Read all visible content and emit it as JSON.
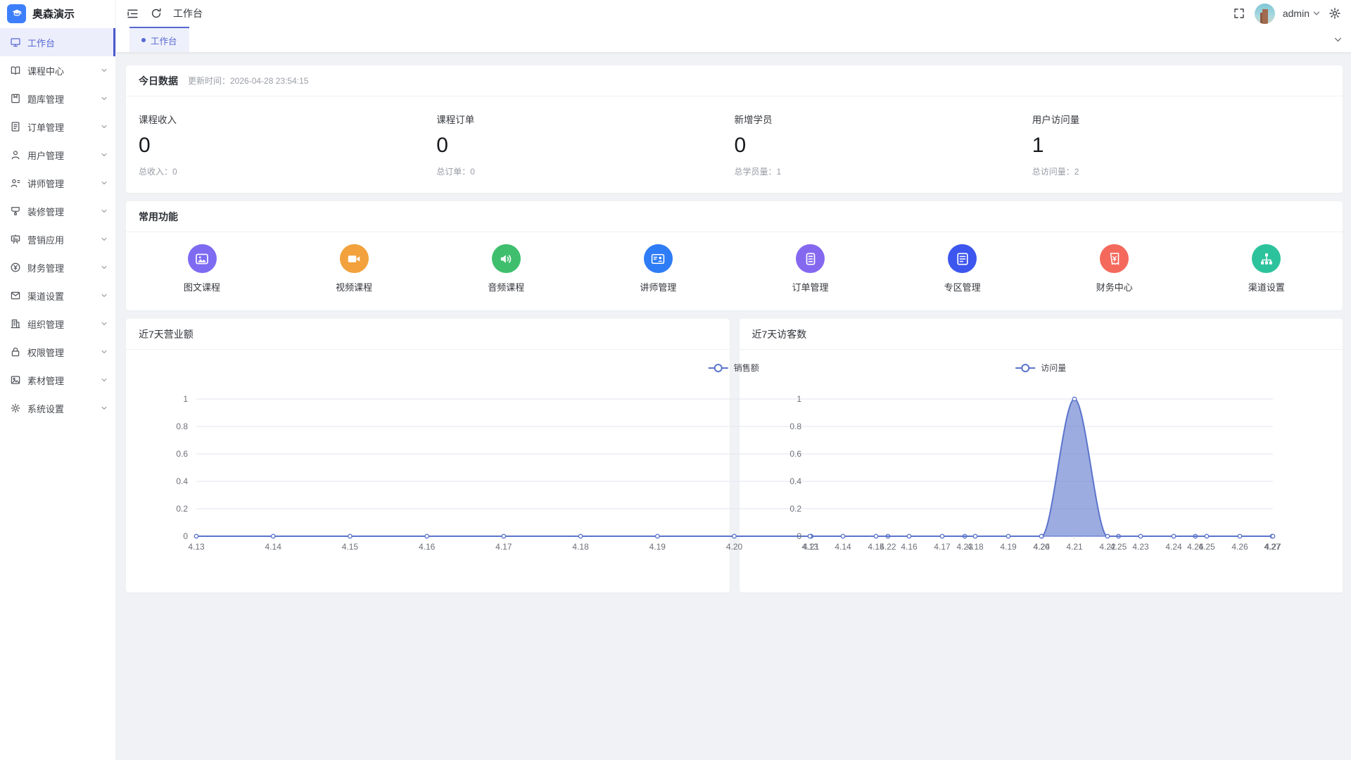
{
  "colors": {
    "accent": "#5767d2",
    "accent_light_bg": "#eceefb",
    "accent_bar": "#4d5ace",
    "logo_blue": "#3d7ffb",
    "content_bg": "#f0f2f5",
    "chart_line": "#5b74cc",
    "chart_area": "rgba(91,116,204,0.6)"
  },
  "sidebar": {
    "logo_text": "奥森演示",
    "logo_icon": "graduation-cap-icon",
    "items": [
      {
        "key": "workbench",
        "label": "工作台",
        "icon": "monitor-icon",
        "active": true,
        "expandable": false
      },
      {
        "key": "course-center",
        "label": "课程中心",
        "icon": "course-book-icon",
        "active": false,
        "expandable": true
      },
      {
        "key": "question-bank",
        "label": "题库管理",
        "icon": "question-bank-icon",
        "active": false,
        "expandable": true
      },
      {
        "key": "order-management",
        "label": "订单管理",
        "icon": "order-file-icon",
        "active": false,
        "expandable": true
      },
      {
        "key": "user-management",
        "label": "用户管理",
        "icon": "user-icon",
        "active": false,
        "expandable": true
      },
      {
        "key": "instructor-management",
        "label": "讲师管理",
        "icon": "instructor-icon",
        "active": false,
        "expandable": true
      },
      {
        "key": "decoration-management",
        "label": "装修管理",
        "icon": "decorate-icon",
        "active": false,
        "expandable": true
      },
      {
        "key": "marketing-apps",
        "label": "营销应用",
        "icon": "marketing-icon",
        "active": false,
        "expandable": true
      },
      {
        "key": "finance-management",
        "label": "财务管理",
        "icon": "finance-yen-icon",
        "active": false,
        "expandable": true
      },
      {
        "key": "channel-settings",
        "label": "渠道设置",
        "icon": "channel-mail-icon",
        "active": false,
        "expandable": true
      },
      {
        "key": "organization-management",
        "label": "组织管理",
        "icon": "organization-icon",
        "active": false,
        "expandable": true
      },
      {
        "key": "permission-management",
        "label": "权限管理",
        "icon": "permission-lock-icon",
        "active": false,
        "expandable": true
      },
      {
        "key": "material-management",
        "label": "素材管理",
        "icon": "material-image-icon",
        "active": false,
        "expandable": true
      },
      {
        "key": "system-settings",
        "label": "系统设置",
        "icon": "system-settings-icon",
        "active": false,
        "expandable": true
      }
    ]
  },
  "topbar": {
    "breadcrumb": "工作台",
    "username": "admin",
    "left_icons": [
      "fold-icon",
      "refresh-icon"
    ],
    "right_icons": [
      "fullscreen-icon",
      "avatar",
      "chevron-down-icon",
      "gear-icon"
    ]
  },
  "tabs": {
    "items": [
      {
        "label": "工作台",
        "active": true
      }
    ]
  },
  "today": {
    "title": "今日数据",
    "updated": "更新时间：2026-04-28 23:54:15",
    "stats": [
      {
        "label": "课程收入",
        "value": "0",
        "sub": "总收入：0"
      },
      {
        "label": "课程订单",
        "value": "0",
        "sub": "总订单：0"
      },
      {
        "label": "新增学员",
        "value": "0",
        "sub": "总学员量：1"
      },
      {
        "label": "用户访问量",
        "value": "1",
        "sub": "总访问量：2"
      }
    ]
  },
  "quick": {
    "title": "常用功能",
    "items": [
      {
        "key": "image-course",
        "label": "图文课程",
        "icon": "image-course-icon",
        "color": "#7d6bf2"
      },
      {
        "key": "video-course",
        "label": "视频课程",
        "icon": "video-course-icon",
        "color": "#f2a13c"
      },
      {
        "key": "audio-course",
        "label": "音频课程",
        "icon": "audio-course-icon",
        "color": "#3fbf6e"
      },
      {
        "key": "instructor-management",
        "label": "讲师管理",
        "icon": "instructor-card-icon",
        "color": "#2e7cf6"
      },
      {
        "key": "order-management",
        "label": "订单管理",
        "icon": "order-list-icon",
        "color": "#8568f0"
      },
      {
        "key": "zone-management",
        "label": "专区管理",
        "icon": "zone-doc-icon",
        "color": "#3d56ee"
      },
      {
        "key": "finance-center",
        "label": "财务中心",
        "icon": "finance-receipt-icon",
        "color": "#f4695c"
      },
      {
        "key": "channel-settings",
        "label": "渠道设置",
        "icon": "channel-network-icon",
        "color": "#2cc39c"
      }
    ]
  },
  "chart_data": [
    {
      "type": "line",
      "title": "近7天营业额",
      "categories": [
        "4.13",
        "4.14",
        "4.15",
        "4.16",
        "4.17",
        "4.18",
        "4.19",
        "4.20",
        "4.21",
        "4.22",
        "4.23",
        "4.24",
        "4.25",
        "4.26",
        "4.27"
      ],
      "series": [
        {
          "name": "销售额",
          "values": [
            0,
            0,
            0,
            0,
            0,
            0,
            0,
            0,
            0,
            0,
            0,
            0,
            0,
            0,
            0
          ]
        }
      ],
      "xlabel": "",
      "ylabel": "",
      "ylim": [
        0,
        1
      ],
      "yticks": [
        0,
        0.2,
        0.4,
        0.6,
        0.8,
        1
      ],
      "legend_position": "top-center",
      "grid": true,
      "smooth": true,
      "line_color": "#5b74cc",
      "area_color": "rgba(91,116,204,0.6)"
    },
    {
      "type": "line",
      "title": "近7天访客数",
      "categories": [
        "4.13",
        "4.14",
        "4.15",
        "4.16",
        "4.17",
        "4.18",
        "4.19",
        "4.20",
        "4.21",
        "4.22",
        "4.23",
        "4.24",
        "4.25",
        "4.26",
        "4.27"
      ],
      "series": [
        {
          "name": "访问量",
          "values": [
            0,
            0,
            0,
            0,
            0,
            0,
            0,
            0,
            1,
            0,
            0,
            0,
            0,
            0,
            0
          ]
        }
      ],
      "xlabel": "",
      "ylabel": "",
      "ylim": [
        0,
        1
      ],
      "yticks": [
        0,
        0.2,
        0.4,
        0.6,
        0.8,
        1
      ],
      "legend_position": "top-center",
      "grid": true,
      "smooth": true,
      "line_color": "#5b74cc",
      "area_color": "rgba(91,116,204,0.6)"
    }
  ]
}
